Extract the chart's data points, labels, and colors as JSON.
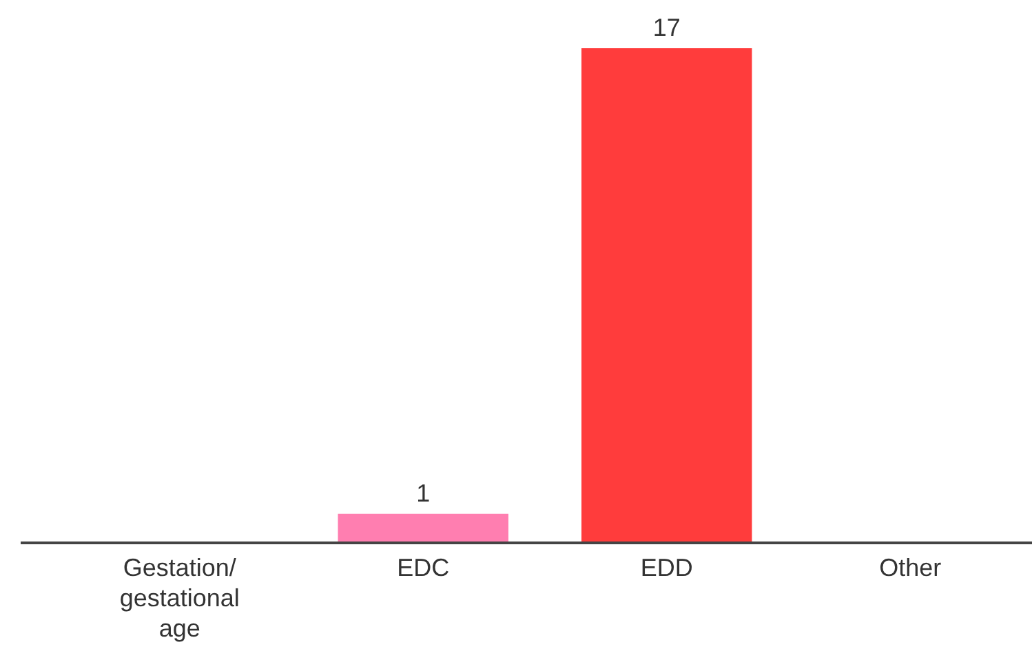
{
  "chart_data": {
    "type": "bar",
    "categories": [
      "Gestation/ gestational age",
      "EDC",
      "EDD",
      "Other"
    ],
    "values": [
      null,
      1,
      17,
      null
    ],
    "colors": [
      null,
      "#ff7eb0",
      "#ff3c3c",
      null
    ],
    "data_labels": true
  }
}
